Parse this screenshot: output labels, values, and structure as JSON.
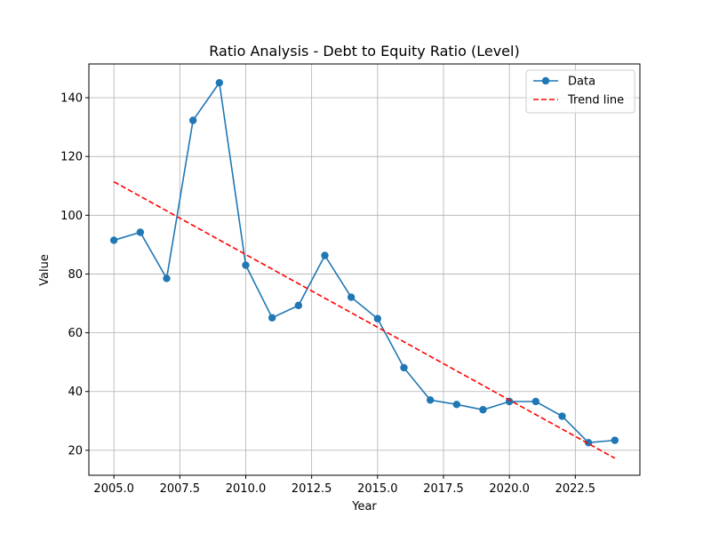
{
  "chart_data": {
    "type": "line",
    "title": "Ratio Analysis - Debt to Equity Ratio (Level)",
    "xlabel": "Year",
    "ylabel": "Value",
    "xlim": [
      2004.05,
      2024.95
    ],
    "ylim": [
      11.5,
      151.5
    ],
    "xticks": [
      2005,
      2007.5,
      2010,
      2012.5,
      2015,
      2017.5,
      2020,
      2022.5
    ],
    "xtick_labels": [
      "2005.0",
      "2007.5",
      "2010.0",
      "2012.5",
      "2015.0",
      "2017.5",
      "2020.0",
      "2022.5"
    ],
    "yticks": [
      20,
      40,
      60,
      80,
      100,
      120,
      140
    ],
    "ytick_labels": [
      "20",
      "40",
      "60",
      "80",
      "100",
      "120",
      "140"
    ],
    "grid": true,
    "legend_position": "top-right",
    "series": [
      {
        "name": "Data",
        "style": "line-with-markers",
        "color": "#1f77b4",
        "x": [
          2005,
          2006,
          2007,
          2008,
          2009,
          2010,
          2011,
          2012,
          2013,
          2014,
          2015,
          2016,
          2017,
          2018,
          2019,
          2020,
          2021,
          2022,
          2023,
          2024
        ],
        "y": [
          91.5,
          94.2,
          78.5,
          132.3,
          145.1,
          83.0,
          65.1,
          69.3,
          86.3,
          72.1,
          64.8,
          48.1,
          37.1,
          35.6,
          33.8,
          36.6,
          36.6,
          31.6,
          22.6,
          23.4
        ]
      },
      {
        "name": "Trend line",
        "style": "dashed",
        "color": "#ff0000",
        "x": [
          2005,
          2024
        ],
        "y": [
          111.4,
          17.3
        ]
      }
    ]
  }
}
